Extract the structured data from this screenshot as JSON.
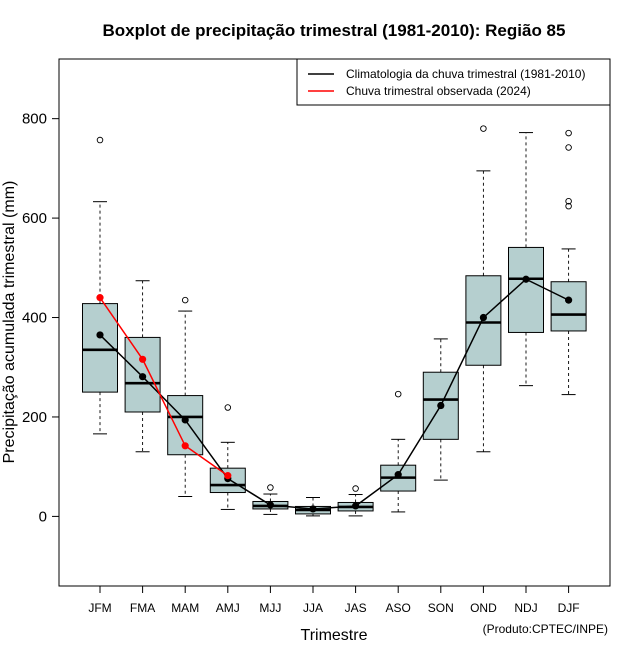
{
  "chart_data": {
    "type": "boxplot",
    "title": "Boxplot de precipitação trimestral (1981-2010): Região 85",
    "xlabel": "Trimestre",
    "ylabel": "Precipitação acumulada trimestral (mm)",
    "ylim": [
      -140,
      920
    ],
    "yticks": [
      0,
      200,
      400,
      600,
      800
    ],
    "categories": [
      "JFM",
      "FMA",
      "MAM",
      "AMJ",
      "MJJ",
      "JJA",
      "JAS",
      "ASO",
      "SON",
      "OND",
      "NDJ",
      "DJF"
    ],
    "boxes": [
      {
        "whisker_low": 166,
        "q1": 250,
        "median": 335,
        "q3": 428,
        "whisker_high": 633,
        "outliers": [
          757
        ]
      },
      {
        "whisker_low": 130,
        "q1": 210,
        "median": 268,
        "q3": 360,
        "whisker_high": 474,
        "outliers": []
      },
      {
        "whisker_low": 40,
        "q1": 124,
        "median": 200,
        "q3": 243,
        "whisker_high": 413,
        "outliers": [
          435
        ]
      },
      {
        "whisker_low": 14,
        "q1": 48,
        "median": 63,
        "q3": 97,
        "whisker_high": 149,
        "outliers": [
          219
        ]
      },
      {
        "whisker_low": 4,
        "q1": 15,
        "median": 21,
        "q3": 30,
        "whisker_high": 45,
        "outliers": [
          58
        ]
      },
      {
        "whisker_low": 1,
        "q1": 5,
        "median": 13,
        "q3": 20,
        "whisker_high": 38,
        "outliers": []
      },
      {
        "whisker_low": 1,
        "q1": 11,
        "median": 19,
        "q3": 28,
        "whisker_high": 44,
        "outliers": [
          56
        ]
      },
      {
        "whisker_low": 9,
        "q1": 51,
        "median": 78,
        "q3": 103,
        "whisker_high": 155,
        "outliers": [
          246
        ]
      },
      {
        "whisker_low": 73,
        "q1": 155,
        "median": 235,
        "q3": 290,
        "whisker_high": 357,
        "outliers": []
      },
      {
        "whisker_low": 130,
        "q1": 304,
        "median": 390,
        "q3": 484,
        "whisker_high": 695,
        "outliers": [
          780
        ]
      },
      {
        "whisker_low": 263,
        "q1": 370,
        "median": 478,
        "q3": 541,
        "whisker_high": 772,
        "outliers": []
      },
      {
        "whisker_low": 245,
        "q1": 373,
        "median": 406,
        "q3": 472,
        "whisker_high": 538,
        "outliers": [
          624,
          634,
          742,
          771
        ]
      }
    ],
    "series": [
      {
        "name": "Climatologia da chuva trimestral (1981-2010)",
        "color": "#000000",
        "values": [
          365,
          281,
          194,
          76,
          23,
          15,
          21,
          84,
          223,
          400,
          477,
          435
        ]
      },
      {
        "name": "Chuva trimestral observada (2024)",
        "color": "#ff0000",
        "values": [
          440,
          316,
          142,
          82,
          null,
          null,
          null,
          null,
          null,
          null,
          null,
          null
        ]
      }
    ],
    "box_fill": "#b5cfcf",
    "legend_position": "top-right",
    "credit": "(Produto:CPTEC/INPE)"
  }
}
